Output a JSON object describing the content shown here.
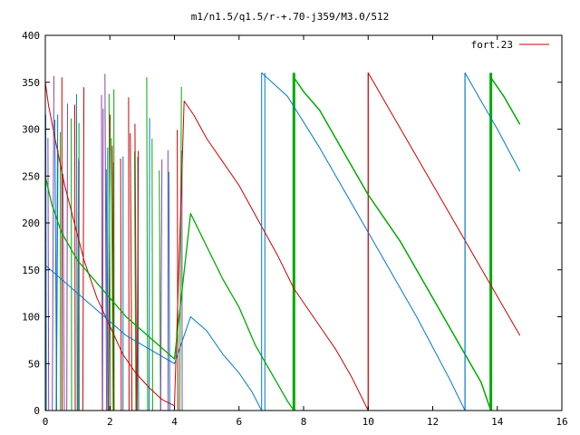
{
  "chart_data": {
    "type": "line",
    "title": "m1/n1.5/q1.5/r-+.70-j359/M3.0/512",
    "xlabel": "",
    "ylabel": "",
    "xlim": [
      0,
      16
    ],
    "ylim": [
      0,
      400
    ],
    "xticks": [
      0,
      2,
      4,
      6,
      8,
      10,
      12,
      14,
      16
    ],
    "yticks": [
      0,
      50,
      100,
      150,
      200,
      250,
      300,
      350,
      400
    ],
    "grid": false,
    "legend": {
      "placement": "top-right",
      "entries": [
        {
          "label": "fort.23",
          "color": "#cc0000"
        }
      ]
    },
    "colors": {
      "red": "#cc0000",
      "green": "#00aa00",
      "blue": "#0077cc",
      "purple": "#8844aa"
    },
    "series": [
      {
        "name": "fort.23",
        "color": "#cc0000",
        "width": 1,
        "x": [
          0.0,
          0.1,
          0.3,
          0.6,
          0.9,
          1.2,
          1.6,
          2.0,
          2.4,
          2.8,
          3.2,
          3.6,
          4.0,
          4.3,
          4.6,
          5.0,
          5.5,
          6.0,
          6.4,
          6.8,
          7.2,
          7.7,
          8.0,
          8.5,
          9.0,
          9.5,
          10.0,
          10.0,
          14.7
        ],
        "y": [
          350,
          325,
          290,
          240,
          200,
          160,
          120,
          90,
          60,
          40,
          25,
          12,
          5,
          330,
          315,
          290,
          265,
          240,
          215,
          190,
          165,
          130,
          115,
          90,
          65,
          35,
          0,
          360,
          80
        ]
      },
      {
        "name": "",
        "color": "#00aa00",
        "width": 1.3,
        "x": [
          0.0,
          0.2,
          0.5,
          1.0,
          1.5,
          2.0,
          2.5,
          3.0,
          3.5,
          4.0,
          4.5,
          5.0,
          5.5,
          6.0,
          6.5,
          7.0,
          7.5,
          7.7
        ],
        "y": [
          250,
          220,
          190,
          160,
          140,
          120,
          100,
          85,
          70,
          55,
          210,
          175,
          140,
          110,
          70,
          40,
          10,
          0
        ]
      },
      {
        "name": "",
        "color": "#00aa00",
        "width": 1.5,
        "x": [
          7.7,
          8.0,
          8.5,
          9.0,
          9.5,
          10.0,
          10.5,
          11.0,
          11.5,
          12.0,
          12.5,
          13.0,
          13.5,
          13.8
        ],
        "y": [
          355,
          340,
          320,
          290,
          260,
          230,
          205,
          180,
          150,
          120,
          90,
          60,
          30,
          0
        ]
      },
      {
        "name": "",
        "color": "#00aa00",
        "width": 1.5,
        "x": [
          13.8,
          14.2,
          14.7
        ],
        "y": [
          355,
          335,
          305
        ]
      },
      {
        "name": "",
        "color": "#0077cc",
        "width": 1,
        "x": [
          0.0,
          0.5,
          1.0,
          1.5,
          2.0,
          2.5,
          3.0,
          3.5,
          4.0,
          4.5,
          5.0,
          5.5,
          6.0,
          6.4,
          6.7,
          6.7,
          7.5,
          8.5,
          9.5,
          10.5,
          11.5,
          12.5,
          13.0,
          13.0,
          13.5,
          14.0,
          14.7
        ],
        "y": [
          155,
          140,
          125,
          110,
          95,
          80,
          70,
          60,
          50,
          100,
          85,
          60,
          40,
          20,
          0,
          360,
          335,
          280,
          220,
          160,
          100,
          35,
          0,
          360,
          330,
          300,
          255
        ]
      }
    ],
    "vertical_lines": [
      {
        "x": 6.8,
        "color": "#0077cc",
        "width": 1,
        "y": [
          0,
          360
        ]
      },
      {
        "x": 7.7,
        "color": "#00aa00",
        "width": 3,
        "y": [
          0,
          360
        ]
      },
      {
        "x": 10.0,
        "color": "#cc0000",
        "width": 1,
        "y": [
          0,
          360
        ]
      },
      {
        "x": 13.0,
        "color": "#0077cc",
        "width": 1,
        "y": [
          0,
          360
        ]
      },
      {
        "x": 13.8,
        "color": "#00aa00",
        "width": 3,
        "y": [
          0,
          360
        ]
      }
    ],
    "chaotic_region": {
      "x_range": [
        0.0,
        4.3
      ],
      "y_range": [
        0,
        360
      ]
    }
  }
}
